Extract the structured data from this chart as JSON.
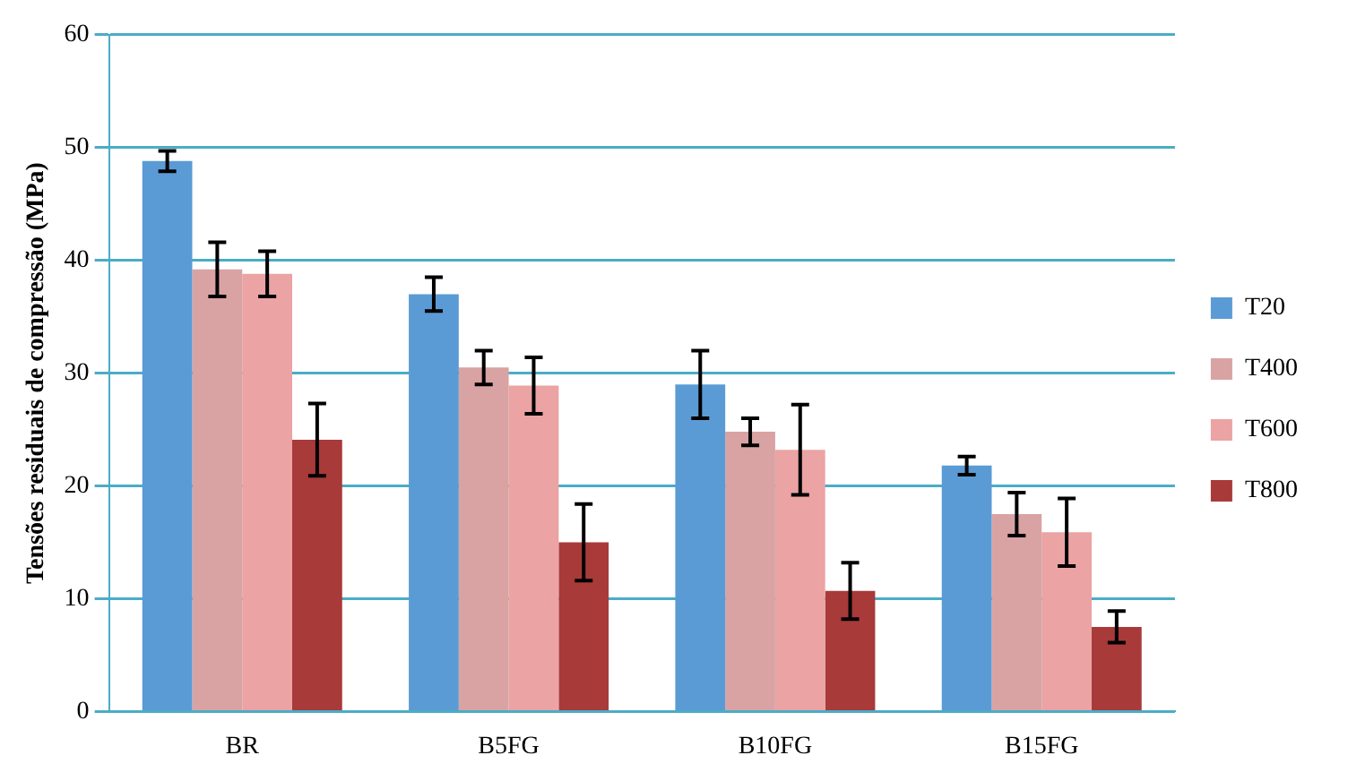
{
  "chart_data": {
    "type": "bar",
    "ylabel": "Tensões residuais de compressão (MPa)",
    "categories": [
      "BR",
      "B5FG",
      "B10FG",
      "B15FG"
    ],
    "series": [
      {
        "name": "T20",
        "color": "#5b9bd5",
        "values": [
          48.8,
          37.0,
          29.0,
          21.8
        ],
        "errors": [
          0.9,
          1.5,
          3,
          0.8
        ]
      },
      {
        "name": "T400",
        "color": "#d9a3a3",
        "values": [
          39.2,
          30.5,
          24.8,
          17.5
        ],
        "errors": [
          2.4,
          1.5,
          1.2,
          1.9
        ]
      },
      {
        "name": "T600",
        "color": "#eba3a3",
        "values": [
          38.8,
          28.9,
          23.2,
          15.9
        ],
        "errors": [
          2,
          2.5,
          4,
          3
        ]
      },
      {
        "name": "T800",
        "color": "#a83a3a",
        "values": [
          24.1,
          15.0,
          10.7,
          7.5
        ],
        "errors": [
          3.2,
          3.4,
          2.5,
          1.4
        ]
      }
    ],
    "ylim": [
      0,
      60
    ],
    "yticks": [
      0,
      10,
      20,
      30,
      40,
      50,
      60
    ],
    "grid": "y",
    "legend": "right"
  }
}
